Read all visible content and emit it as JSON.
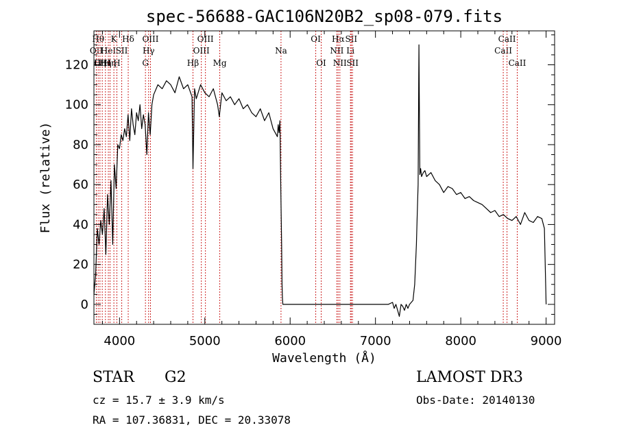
{
  "chart_data": {
    "type": "line",
    "title": "spec-56688-GAC106N20B2_sp08-079.fits",
    "xlabel": "Wavelength (Å)",
    "ylabel": "Flux (relative)",
    "xlim": [
      3700,
      9100
    ],
    "ylim": [
      -10,
      137
    ],
    "x_ticks": [
      4000,
      5000,
      6000,
      7000,
      8000,
      9000
    ],
    "y_ticks": [
      0,
      20,
      40,
      60,
      80,
      100,
      120
    ],
    "grid": false,
    "series": [
      {
        "x": [
          3700,
          3720,
          3740,
          3760,
          3780,
          3800,
          3820,
          3840,
          3860,
          3880,
          3900,
          3920,
          3940,
          3960,
          3980,
          4000,
          4020,
          4040,
          4060,
          4080,
          4100,
          4120,
          4140,
          4160,
          4180,
          4200,
          4220,
          4240,
          4260,
          4280,
          4300,
          4320,
          4340,
          4360,
          4380,
          4400,
          4450,
          4500,
          4550,
          4600,
          4650,
          4700,
          4750,
          4800,
          4850,
          4861,
          4880,
          4900,
          4950,
          5000,
          5050,
          5100,
          5150,
          5170,
          5200,
          5250,
          5300,
          5350,
          5400,
          5450,
          5500,
          5550,
          5600,
          5650,
          5700,
          5750,
          5800,
          5850,
          5860,
          5870,
          5880,
          5890,
          5900,
          5905,
          5910,
          5915,
          5920,
          5930,
          5950,
          6000,
          6100,
          6200,
          6300,
          6400,
          6500,
          6600,
          6700,
          6800,
          6900,
          7000,
          7100,
          7150,
          7200,
          7220,
          7240,
          7260,
          7280,
          7300,
          7320,
          7340,
          7360,
          7380,
          7400,
          7420,
          7440,
          7460,
          7480,
          7490,
          7500,
          7510,
          7520,
          7530,
          7540,
          7560,
          7580,
          7600,
          7650,
          7700,
          7750,
          7800,
          7850,
          7900,
          7950,
          8000,
          8050,
          8100,
          8150,
          8200,
          8250,
          8300,
          8350,
          8400,
          8450,
          8500,
          8550,
          8600,
          8650,
          8700,
          8750,
          8800,
          8850,
          8900,
          8950,
          8980,
          9000
        ],
        "y": [
          5,
          15,
          38,
          30,
          42,
          35,
          48,
          25,
          55,
          40,
          62,
          30,
          70,
          58,
          80,
          78,
          85,
          82,
          88,
          84,
          95,
          82,
          98,
          90,
          85,
          96,
          92,
          100,
          88,
          95,
          90,
          75,
          96,
          85,
          100,
          105,
          110,
          108,
          112,
          110,
          106,
          114,
          108,
          110,
          104,
          68,
          108,
          103,
          110,
          106,
          104,
          108,
          100,
          94,
          106,
          102,
          104,
          100,
          103,
          98,
          100,
          96,
          94,
          98,
          92,
          96,
          88,
          84,
          90,
          86,
          92,
          60,
          30,
          10,
          3,
          0,
          0,
          0,
          0,
          0,
          0,
          0,
          0,
          0,
          0,
          0,
          0,
          0,
          0,
          0,
          0,
          0,
          1,
          -2,
          0,
          -3,
          -6,
          0,
          -1,
          -3,
          0,
          -2,
          0,
          1,
          2,
          10,
          30,
          45,
          60,
          130,
          65,
          68,
          64,
          66,
          67,
          64,
          66,
          62,
          60,
          56,
          59,
          58,
          55,
          56,
          53,
          54,
          52,
          51,
          50,
          48,
          46,
          47,
          44,
          45,
          43,
          42,
          44,
          40,
          46,
          42,
          41,
          44,
          43,
          38,
          0
        ]
      }
    ],
    "line_markers": [
      {
        "w": 3728,
        "label": "OII",
        "row": 1
      },
      {
        "w": 3750,
        "label": "Hθ",
        "row": 0
      },
      {
        "w": 3771,
        "label": "Hη",
        "row": 2
      },
      {
        "w": 3798,
        "label": "OIII",
        "row": 2
      },
      {
        "w": 3835,
        "label": "Hη",
        "row": 2
      },
      {
        "w": 3869,
        "label": "HeI",
        "row": 1
      },
      {
        "w": 3889,
        "label": "Hη",
        "row": 2
      },
      {
        "w": 3934,
        "label": "K",
        "row": 0
      },
      {
        "w": 3969,
        "label": "H",
        "row": 2
      },
      {
        "w": 4026,
        "label": "SII",
        "row": 1
      },
      {
        "w": 4102,
        "label": "Hδ",
        "row": 0
      },
      {
        "w": 4304,
        "label": "G",
        "row": 2
      },
      {
        "w": 4341,
        "label": "Hγ",
        "row": 1
      },
      {
        "w": 4363,
        "label": "OIII",
        "row": 0
      },
      {
        "w": 4861,
        "label": "Hβ",
        "row": 2
      },
      {
        "w": 4959,
        "label": "OIII",
        "row": 1
      },
      {
        "w": 5007,
        "label": "OIII",
        "row": 0
      },
      {
        "w": 5175,
        "label": "Mg",
        "row": 2
      },
      {
        "w": 5893,
        "label": "Na",
        "row": 1
      },
      {
        "w": 6300,
        "label": "OI",
        "row": 0
      },
      {
        "w": 6364,
        "label": "OI",
        "row": 2
      },
      {
        "w": 6548,
        "label": "NII",
        "row": 1
      },
      {
        "w": 6563,
        "label": "Hα",
        "row": 0
      },
      {
        "w": 6583,
        "label": "NII",
        "row": 2
      },
      {
        "w": 6707,
        "label": "Li",
        "row": 1
      },
      {
        "w": 6716,
        "label": "SII",
        "row": 0
      },
      {
        "w": 6731,
        "label": "SII",
        "row": 2
      },
      {
        "w": 8498,
        "label": "CaII",
        "row": 1
      },
      {
        "w": 8542,
        "label": "CaII",
        "row": 0
      },
      {
        "w": 8662,
        "label": "CaII",
        "row": 2
      }
    ]
  },
  "info": {
    "object_class": "STAR",
    "subclass": "G2",
    "redshift": "cz = 15.7 ± 3.9 km/s",
    "coords": "RA = 107.36831, DEC =  20.33078",
    "survey": "LAMOST DR3",
    "obs_date": "Obs-Date: 20140130"
  }
}
